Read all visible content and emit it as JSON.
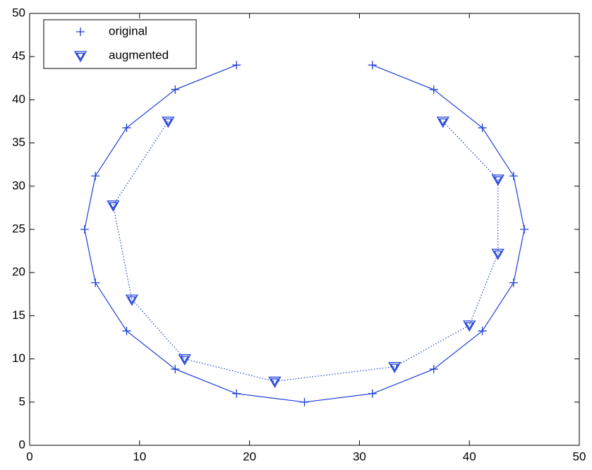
{
  "chart_data": {
    "type": "line",
    "xlim": [
      0,
      50
    ],
    "ylim": [
      0,
      50
    ],
    "xticks": [
      0,
      10,
      20,
      30,
      40,
      50
    ],
    "yticks": [
      0,
      5,
      10,
      15,
      20,
      25,
      30,
      35,
      40,
      45,
      50
    ],
    "legend": "upper left",
    "series": [
      {
        "name": "original",
        "color": "#1d3fd6",
        "marker": "plus",
        "linestyle": "solid",
        "x": [
          18.82,
          13.24,
          8.82,
          5.98,
          5,
          5.98,
          8.82,
          13.24,
          18.82,
          25,
          31.18,
          36.76,
          41.18,
          44.02,
          45,
          44.02,
          41.18,
          36.76,
          31.18
        ],
        "values": [
          44.02,
          41.18,
          36.76,
          31.18,
          25,
          18.82,
          13.24,
          8.82,
          5.98,
          5,
          5.98,
          8.82,
          13.24,
          18.82,
          25,
          31.18,
          36.76,
          41.18,
          44.02
        ]
      },
      {
        "name": "augmented",
        "color": "#1d3fd6",
        "marker": "triangle-down",
        "linestyle": "dotted",
        "x": [
          12.6,
          7.6,
          9.3,
          14.1,
          22.3,
          33.2,
          40.0,
          42.6,
          42.6,
          37.6
        ],
        "values": [
          37.5,
          27.8,
          16.9,
          10.0,
          7.4,
          9.1,
          13.9,
          22.2,
          30.8,
          37.5
        ]
      }
    ]
  }
}
